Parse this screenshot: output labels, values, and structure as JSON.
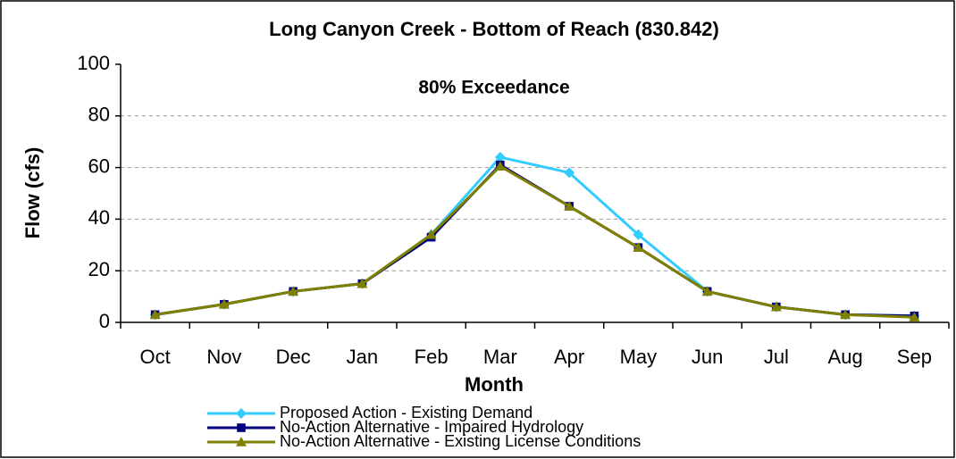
{
  "chart_data": {
    "type": "line",
    "title": "Long Canyon Creek - Bottom of Reach (830.842)",
    "annotation": "80% Exceedance",
    "x_label": "Month",
    "y_label": "Flow (cfs)",
    "categories": [
      "Oct",
      "Nov",
      "Dec",
      "Jan",
      "Feb",
      "Mar",
      "Apr",
      "May",
      "Jun",
      "Jul",
      "Aug",
      "Sep"
    ],
    "series": [
      {
        "name": "Proposed Action - Existing Demand",
        "color": "#33ccff",
        "marker": "diamond",
        "values": [
          3,
          7,
          12,
          15,
          34,
          64,
          58,
          34,
          12,
          6,
          3,
          2.5
        ]
      },
      {
        "name": "No-Action Alternative - Impaired Hydrology",
        "color": "#000080",
        "marker": "square",
        "values": [
          3,
          7,
          12,
          15,
          33,
          61,
          45,
          29,
          12,
          6,
          3,
          2.5
        ]
      },
      {
        "name": "No-Action Alternative - Existing License Conditions",
        "color": "#808000",
        "marker": "triangle",
        "values": [
          3,
          7,
          12,
          15,
          34,
          60.5,
          45,
          29,
          12,
          6,
          3,
          2
        ]
      }
    ],
    "ylim": [
      0,
      100
    ],
    "yticks": [
      0,
      20,
      40,
      60,
      80,
      100
    ],
    "grid": true
  }
}
